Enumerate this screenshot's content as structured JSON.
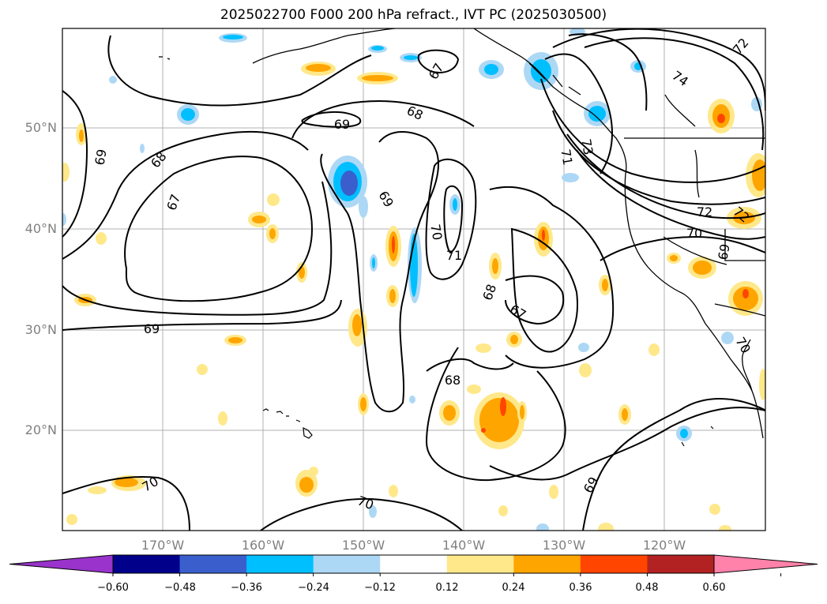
{
  "title": "2025022700 F000 200 hPa refract., IVT PC (2025030500)",
  "lat_labels": [
    "50°N",
    "40°N",
    "30°N",
    "20°N"
  ],
  "lon_labels": [
    "170°W",
    "160°W",
    "150°W",
    "140°W",
    "130°W",
    "120°W"
  ],
  "contour_labels": [
    "67",
    "68",
    "69",
    "70",
    "71",
    "72",
    "73",
    "74"
  ],
  "colorbar": {
    "ticks": [
      "−0.60",
      "−0.48",
      "−0.36",
      "−0.24",
      "−0.12",
      "0.12",
      "0.24",
      "0.36",
      "0.48",
      "0.60"
    ],
    "colors": [
      "#9933cc",
      "#00008b",
      "#3a5fcd",
      "#00bfff",
      "#add8f5",
      "#ffffff",
      "#ffe88a",
      "#ffa500",
      "#ff4500",
      "#b22222",
      "#ff82aa"
    ]
  }
}
